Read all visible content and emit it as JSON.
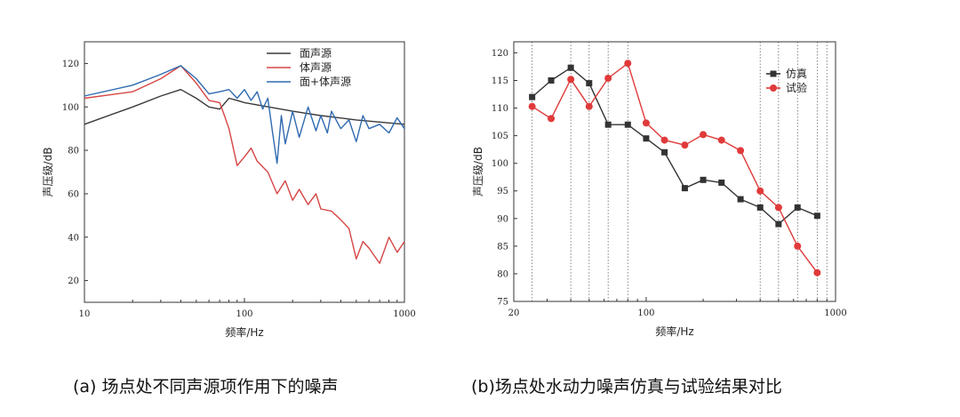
{
  "chart_data": [
    {
      "type": "line",
      "xscale": "log",
      "xlim": [
        10,
        1000
      ],
      "ylim": [
        10,
        130
      ],
      "xticks": [
        "10",
        "100",
        "1000"
      ],
      "yticks": [
        "20",
        "40",
        "60",
        "80",
        "100",
        "120"
      ],
      "xlabel": "频率/Hz",
      "ylabel": "声压级/dB",
      "grid": false,
      "legend_position": "top-right",
      "series": [
        {
          "name": "面声源",
          "color": "#3a3a3a",
          "x": [
            10,
            20,
            30,
            40,
            50,
            60,
            70,
            80,
            90,
            100,
            200,
            300,
            500,
            1000
          ],
          "y": [
            92,
            100,
            105,
            108,
            104,
            100,
            99,
            104,
            103,
            102,
            98,
            96,
            94,
            92
          ]
        },
        {
          "name": "体声源",
          "color": "#d64545",
          "x": [
            10,
            20,
            30,
            40,
            50,
            60,
            70,
            75,
            80,
            90,
            100,
            110,
            120,
            140,
            160,
            180,
            200,
            220,
            250,
            280,
            300,
            350,
            400,
            450,
            500,
            550,
            600,
            700,
            800,
            900,
            1000
          ],
          "y": [
            104,
            107,
            113,
            119,
            111,
            103,
            102,
            96,
            90,
            73,
            77,
            81,
            75,
            70,
            60,
            66,
            57,
            62,
            55,
            60,
            53,
            52,
            48,
            44,
            30,
            38,
            35,
            28,
            40,
            33,
            38
          ]
        },
        {
          "name": "面+体声源",
          "color": "#2f6ab0",
          "x": [
            10,
            20,
            30,
            40,
            50,
            60,
            70,
            80,
            90,
            100,
            110,
            120,
            130,
            140,
            150,
            160,
            170,
            180,
            200,
            220,
            250,
            280,
            300,
            330,
            350,
            400,
            450,
            500,
            550,
            600,
            700,
            800,
            900,
            1000
          ],
          "y": [
            105,
            110,
            115,
            119,
            113,
            106,
            107,
            108,
            104,
            108,
            103,
            107,
            99,
            104,
            88,
            74,
            96,
            83,
            98,
            86,
            100,
            89,
            96,
            88,
            98,
            90,
            94,
            84,
            96,
            90,
            92,
            88,
            95,
            90
          ]
        }
      ]
    },
    {
      "type": "line",
      "xscale": "log",
      "xlim": [
        20,
        1000
      ],
      "ylim": [
        75,
        122
      ],
      "xticks": [
        "20",
        "100",
        "1000"
      ],
      "yticks": [
        "75",
        "80",
        "85",
        "90",
        "95",
        "100",
        "105",
        "110",
        "115",
        "120"
      ],
      "xlabel": "频率/Hz",
      "ylabel": "声压级/dB",
      "grid": false,
      "legend_position": "top-right",
      "vertical_dotted_lines_at": [
        25,
        40,
        50,
        63,
        80,
        400,
        500,
        630,
        800,
        900
      ],
      "series": [
        {
          "name": "仿真",
          "color": "#333333",
          "marker": "square",
          "x": [
            25,
            31.5,
            40,
            50,
            63,
            80,
            100,
            125,
            160,
            200,
            250,
            315,
            400,
            500,
            630,
            800
          ],
          "y": [
            112,
            115,
            117.3,
            114.5,
            107,
            107,
            104.5,
            102,
            95.5,
            97,
            96.5,
            93.5,
            92,
            89,
            92,
            90.5
          ]
        },
        {
          "name": "试验",
          "color": "#e03a3a",
          "marker": "circle",
          "x": [
            25,
            31.5,
            40,
            50,
            63,
            80,
            100,
            125,
            160,
            200,
            250,
            315,
            400,
            500,
            630,
            800
          ],
          "y": [
            110.3,
            108.1,
            115.2,
            110.3,
            115.4,
            118.1,
            107.3,
            104.2,
            103.3,
            105.2,
            104.2,
            102.3,
            95,
            92,
            85,
            80.2
          ]
        }
      ]
    }
  ],
  "captions": {
    "a": "(a) 场点处不同声源项作用下的噪声",
    "b": "(b)场点处水动力噪声仿真与试验结果对比"
  }
}
